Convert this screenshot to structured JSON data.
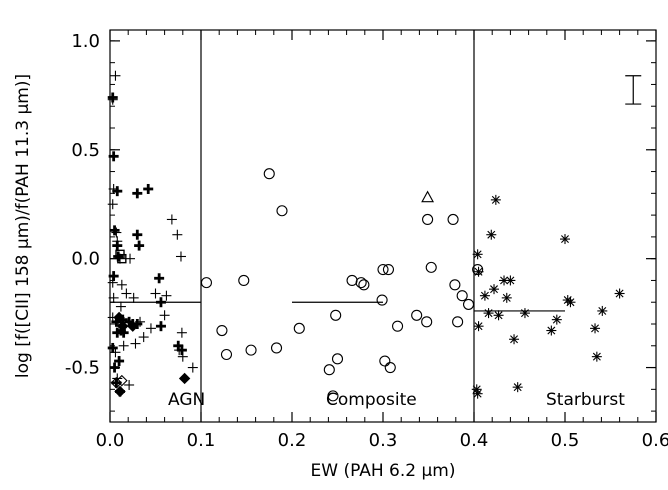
{
  "chart_data": {
    "type": "scatter",
    "xlabel": "EW (PAH 6.2 μm)",
    "ylabel": "log [f([CII] 158 μm)/f(PAH 11.3 μm)]",
    "xlim": [
      0.0,
      0.6
    ],
    "ylim": [
      -0.75,
      1.05
    ],
    "x_ticks": [
      "0.0",
      "0.1",
      "0.2",
      "0.3",
      "0.4",
      "0.5",
      "0.6"
    ],
    "y_ticks": [
      "1.0",
      "0.5",
      "0.0",
      "-0.5"
    ],
    "x_tick_values": [
      0.0,
      0.1,
      0.2,
      0.3,
      0.4,
      0.5,
      0.6
    ],
    "y_tick_values": [
      1.0,
      0.5,
      0.0,
      -0.5
    ],
    "dividers": [
      0.1,
      0.4
    ],
    "region_labels": [
      "AGN",
      "Composite",
      "Starburst"
    ],
    "medians": [
      {
        "x": [
          0.0,
          0.1
        ],
        "y": -0.2
      },
      {
        "x": [
          0.2,
          0.3
        ],
        "y": -0.2
      },
      {
        "x": [
          0.4,
          0.5
        ],
        "y": -0.24
      }
    ],
    "error_bar": {
      "x": 0.575,
      "ylow": 0.71,
      "yhigh": 0.84
    },
    "series": [
      {
        "marker": "plus",
        "points": [
          [
            0.006,
            0.84
          ],
          [
            0.003,
            0.73
          ],
          [
            0.004,
            0.32
          ],
          [
            0.003,
            0.25
          ],
          [
            0.007,
            0.12
          ],
          [
            0.008,
            0.08
          ],
          [
            0.011,
            0.0
          ],
          [
            0.022,
            0.0
          ],
          [
            0.003,
            -0.11
          ],
          [
            0.013,
            -0.12
          ],
          [
            0.004,
            -0.18
          ],
          [
            0.018,
            -0.16
          ],
          [
            0.026,
            -0.18
          ],
          [
            0.003,
            -0.27
          ],
          [
            0.009,
            -0.29
          ],
          [
            0.006,
            -0.43
          ],
          [
            0.015,
            -0.4
          ],
          [
            0.008,
            -0.55
          ],
          [
            0.021,
            -0.58
          ],
          [
            0.012,
            -0.22
          ],
          [
            0.033,
            -0.29
          ],
          [
            0.028,
            -0.39
          ],
          [
            0.037,
            -0.36
          ],
          [
            0.045,
            -0.32
          ],
          [
            0.06,
            -0.26
          ],
          [
            0.05,
            -0.16
          ],
          [
            0.062,
            -0.17
          ],
          [
            0.068,
            0.18
          ],
          [
            0.074,
            0.11
          ],
          [
            0.078,
            0.01
          ],
          [
            0.076,
            -0.42
          ],
          [
            0.08,
            -0.45
          ],
          [
            0.091,
            -0.5
          ],
          [
            0.079,
            -0.34
          ]
        ]
      },
      {
        "marker": "bold-plus",
        "points": [
          [
            0.003,
            0.74
          ],
          [
            0.004,
            0.47
          ],
          [
            0.008,
            0.31
          ],
          [
            0.03,
            0.3
          ],
          [
            0.042,
            0.32
          ],
          [
            0.005,
            0.13
          ],
          [
            0.008,
            0.06
          ],
          [
            0.03,
            0.11
          ],
          [
            0.032,
            0.06
          ],
          [
            0.009,
            0.01
          ],
          [
            0.004,
            -0.08
          ],
          [
            0.054,
            -0.09
          ],
          [
            0.007,
            -0.29
          ],
          [
            0.014,
            -0.28
          ],
          [
            0.021,
            -0.29
          ],
          [
            0.008,
            -0.34
          ],
          [
            0.015,
            -0.34
          ],
          [
            0.025,
            -0.3
          ],
          [
            0.03,
            -0.3
          ],
          [
            0.003,
            -0.41
          ],
          [
            0.01,
            -0.47
          ],
          [
            0.012,
            -0.33
          ],
          [
            0.056,
            -0.31
          ],
          [
            0.075,
            -0.4
          ],
          [
            0.079,
            -0.42
          ],
          [
            0.007,
            -0.57
          ],
          [
            0.011,
            -0.61
          ],
          [
            0.056,
            -0.2
          ],
          [
            0.005,
            -0.5
          ]
        ]
      },
      {
        "marker": "filled-diamond",
        "points": [
          [
            0.011,
            -0.61
          ],
          [
            0.014,
            -0.31
          ],
          [
            0.082,
            -0.55
          ],
          [
            0.01,
            -0.27
          ],
          [
            0.025,
            -0.31
          ]
        ]
      },
      {
        "marker": "open-diamond",
        "points": [
          [
            0.007,
            -0.57
          ],
          [
            0.013,
            -0.56
          ]
        ]
      },
      {
        "marker": "square",
        "points": [
          [
            0.011,
            0.02
          ],
          [
            0.013,
            0.0
          ]
        ]
      },
      {
        "marker": "circle",
        "points": [
          [
            0.106,
            -0.11
          ],
          [
            0.123,
            -0.33
          ],
          [
            0.128,
            -0.44
          ],
          [
            0.147,
            -0.1
          ],
          [
            0.155,
            -0.42
          ],
          [
            0.175,
            0.39
          ],
          [
            0.183,
            -0.41
          ],
          [
            0.189,
            0.22
          ],
          [
            0.208,
            -0.32
          ],
          [
            0.241,
            -0.51
          ],
          [
            0.245,
            -0.63
          ],
          [
            0.248,
            -0.26
          ],
          [
            0.25,
            -0.46
          ],
          [
            0.266,
            -0.1
          ],
          [
            0.276,
            -0.11
          ],
          [
            0.279,
            -0.12
          ],
          [
            0.299,
            -0.19
          ],
          [
            0.3,
            -0.05
          ],
          [
            0.302,
            -0.47
          ],
          [
            0.306,
            -0.05
          ],
          [
            0.308,
            -0.5
          ],
          [
            0.316,
            -0.31
          ],
          [
            0.337,
            -0.26
          ],
          [
            0.348,
            -0.29
          ],
          [
            0.349,
            0.18
          ],
          [
            0.353,
            -0.04
          ],
          [
            0.377,
            0.18
          ],
          [
            0.379,
            -0.12
          ],
          [
            0.382,
            -0.29
          ],
          [
            0.387,
            -0.17
          ],
          [
            0.394,
            -0.21
          ],
          [
            0.404,
            -0.05
          ]
        ]
      },
      {
        "marker": "triangle",
        "points": [
          [
            0.349,
            0.28
          ]
        ]
      },
      {
        "marker": "asterisk",
        "points": [
          [
            0.403,
            -0.6
          ],
          [
            0.404,
            -0.62
          ],
          [
            0.404,
            0.02
          ],
          [
            0.405,
            -0.06
          ],
          [
            0.405,
            -0.31
          ],
          [
            0.412,
            -0.17
          ],
          [
            0.416,
            -0.25
          ],
          [
            0.419,
            0.11
          ],
          [
            0.422,
            -0.14
          ],
          [
            0.424,
            0.27
          ],
          [
            0.427,
            -0.26
          ],
          [
            0.433,
            -0.1
          ],
          [
            0.436,
            -0.18
          ],
          [
            0.44,
            -0.1
          ],
          [
            0.444,
            -0.37
          ],
          [
            0.448,
            -0.59
          ],
          [
            0.456,
            -0.25
          ],
          [
            0.485,
            -0.33
          ],
          [
            0.491,
            -0.28
          ],
          [
            0.5,
            0.09
          ],
          [
            0.503,
            -0.19
          ],
          [
            0.506,
            -0.2
          ],
          [
            0.533,
            -0.32
          ],
          [
            0.535,
            -0.45
          ],
          [
            0.541,
            -0.24
          ],
          [
            0.56,
            -0.16
          ]
        ]
      }
    ]
  }
}
